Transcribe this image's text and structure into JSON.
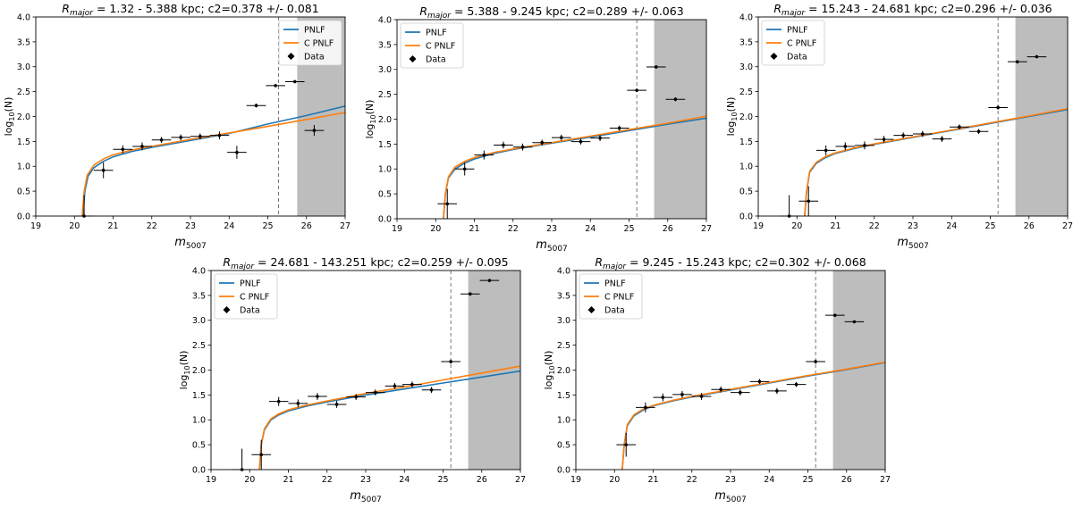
{
  "figure": {
    "legend_labels": [
      "PNLF",
      "C PNLF",
      "Data"
    ],
    "colors": {
      "pnlf": "#1f77b4",
      "cpnlf": "#ff7f0e",
      "data": "#000000",
      "shade": "#bdbdbd"
    }
  },
  "chart_data": [
    {
      "type": "line",
      "panel": "top-left",
      "title_prefix": "R",
      "title_sub": "major",
      "title_rest": " = 1.32 - 5.388 kpc; c2=0.378 +/- 0.081",
      "xlabel": "m",
      "xlabel_sub": "5007",
      "ylabel": "log",
      "ylabel_sub": "10",
      "ylabel_rest": "(N)",
      "xlim": [
        19,
        27
      ],
      "ylim": [
        0,
        4
      ],
      "xticks": [
        "19",
        "20",
        "21",
        "22",
        "23",
        "24",
        "25",
        "26",
        "27"
      ],
      "yticks": [
        "0.0",
        "0.5",
        "1.0",
        "1.5",
        "2.0",
        "2.5",
        "3.0",
        "3.5",
        "4.0"
      ],
      "legend_loc": "upper right",
      "cutoff": 25.28,
      "shade_start": 25.76,
      "pnlf": {
        "x": [
          20.22,
          20.27,
          20.35,
          20.5,
          20.75,
          21.0,
          21.5,
          22.0,
          23.0,
          24.0,
          25.0,
          26.0,
          27.0
        ],
        "y": [
          0,
          0.5,
          0.8,
          0.97,
          1.1,
          1.19,
          1.3,
          1.38,
          1.52,
          1.66,
          1.85,
          2.02,
          2.21
        ]
      },
      "cpnlf": {
        "x": [
          20.2,
          20.25,
          20.33,
          20.5,
          20.75,
          21.0,
          21.5,
          22.0,
          23.0,
          24.0,
          25.0,
          26.0,
          27.0
        ],
        "y": [
          0,
          0.5,
          0.82,
          1.02,
          1.15,
          1.23,
          1.33,
          1.4,
          1.54,
          1.67,
          1.8,
          1.94,
          2.08
        ]
      },
      "points": [
        {
          "x": 20.25,
          "y": 0.0,
          "yerr": 0.42
        },
        {
          "x": 20.75,
          "y": 0.92,
          "yerr": 0.16
        },
        {
          "x": 21.25,
          "y": 1.34,
          "yerr": 0.08
        },
        {
          "x": 21.75,
          "y": 1.4,
          "yerr": 0.08
        },
        {
          "x": 22.25,
          "y": 1.53,
          "yerr": 0.06
        },
        {
          "x": 22.75,
          "y": 1.58,
          "yerr": 0.06
        },
        {
          "x": 23.25,
          "y": 1.6,
          "yerr": 0.06
        },
        {
          "x": 23.75,
          "y": 1.62,
          "yerr": 0.08
        },
        {
          "x": 24.2,
          "y": 1.28,
          "yerr": 0.13
        },
        {
          "x": 24.7,
          "y": 2.22,
          "yerr": 0.04
        },
        {
          "x": 25.2,
          "y": 2.62,
          "yerr": 0.03
        },
        {
          "x": 25.7,
          "y": 2.7,
          "yerr": 0.03
        },
        {
          "x": 26.2,
          "y": 1.72,
          "yerr": 0.11
        }
      ]
    },
    {
      "type": "line",
      "panel": "top-middle",
      "title_prefix": "R",
      "title_sub": "major",
      "title_rest": " = 5.388 - 9.245 kpc; c2=0.289 +/- 0.063",
      "xlabel": "m",
      "xlabel_sub": "5007",
      "ylabel": "log",
      "ylabel_sub": "10",
      "ylabel_rest": "(N)",
      "xlim": [
        19,
        27
      ],
      "ylim": [
        0,
        4
      ],
      "xticks": [
        "19",
        "20",
        "21",
        "22",
        "23",
        "24",
        "25",
        "26",
        "27"
      ],
      "yticks": [
        "0.0",
        "0.5",
        "1.0",
        "1.5",
        "2.0",
        "2.5",
        "3.0",
        "3.5",
        "4.0"
      ],
      "legend_loc": "upper left",
      "cutoff": 25.2,
      "shade_start": 25.65,
      "pnlf": {
        "x": [
          20.2,
          20.25,
          20.33,
          20.5,
          20.75,
          21.0,
          21.5,
          22.0,
          23.0,
          24.0,
          25.0,
          26.0,
          27.0
        ],
        "y": [
          0,
          0.5,
          0.82,
          1.0,
          1.12,
          1.2,
          1.31,
          1.39,
          1.52,
          1.64,
          1.77,
          1.9,
          2.02
        ]
      },
      "cpnlf": {
        "x": [
          20.2,
          20.25,
          20.33,
          20.5,
          20.75,
          21.0,
          21.5,
          22.0,
          23.0,
          24.0,
          25.0,
          26.0,
          27.0
        ],
        "y": [
          0,
          0.5,
          0.84,
          1.04,
          1.15,
          1.23,
          1.33,
          1.4,
          1.53,
          1.66,
          1.79,
          1.92,
          2.06
        ]
      },
      "points": [
        {
          "x": 20.3,
          "y": 0.3,
          "yerr": 0.3
        },
        {
          "x": 20.75,
          "y": 1.0,
          "yerr": 0.13
        },
        {
          "x": 21.25,
          "y": 1.28,
          "yerr": 0.09
        },
        {
          "x": 21.75,
          "y": 1.48,
          "yerr": 0.07
        },
        {
          "x": 22.25,
          "y": 1.44,
          "yerr": 0.07
        },
        {
          "x": 22.75,
          "y": 1.53,
          "yerr": 0.06
        },
        {
          "x": 23.25,
          "y": 1.63,
          "yerr": 0.06
        },
        {
          "x": 23.75,
          "y": 1.55,
          "yerr": 0.06
        },
        {
          "x": 24.25,
          "y": 1.62,
          "yerr": 0.06
        },
        {
          "x": 24.75,
          "y": 1.82,
          "yerr": 0.05
        },
        {
          "x": 25.2,
          "y": 2.58,
          "yerr": 0.03
        },
        {
          "x": 25.7,
          "y": 3.05,
          "yerr": 0.02
        },
        {
          "x": 26.2,
          "y": 2.4,
          "yerr": 0.04
        }
      ]
    },
    {
      "type": "line",
      "panel": "top-right",
      "title_prefix": "R",
      "title_sub": "major",
      "title_rest": " = 15.243 - 24.681 kpc; c2=0.296 +/- 0.036",
      "xlabel": "m",
      "xlabel_sub": "5007",
      "ylabel": "log",
      "ylabel_sub": "10",
      "ylabel_rest": "(N)",
      "xlim": [
        19,
        27
      ],
      "ylim": [
        0,
        4
      ],
      "xticks": [
        "19",
        "20",
        "21",
        "22",
        "23",
        "24",
        "25",
        "26",
        "27"
      ],
      "yticks": [
        "0.0",
        "0.5",
        "1.0",
        "1.5",
        "2.0",
        "2.5",
        "3.0",
        "3.5",
        "4.0"
      ],
      "legend_loc": "upper left",
      "cutoff": 25.2,
      "shade_start": 25.65,
      "pnlf": {
        "x": [
          20.2,
          20.25,
          20.33,
          20.5,
          20.75,
          21.0,
          21.5,
          22.0,
          23.0,
          24.0,
          25.0,
          26.0,
          27.0
        ],
        "y": [
          0,
          0.5,
          0.88,
          1.06,
          1.18,
          1.26,
          1.36,
          1.44,
          1.58,
          1.72,
          1.86,
          2.0,
          2.14
        ]
      },
      "cpnlf": {
        "x": [
          20.2,
          20.25,
          20.33,
          20.5,
          20.75,
          21.0,
          21.5,
          22.0,
          23.0,
          24.0,
          25.0,
          26.0,
          27.0
        ],
        "y": [
          0,
          0.5,
          0.9,
          1.08,
          1.2,
          1.27,
          1.37,
          1.45,
          1.59,
          1.73,
          1.87,
          2.01,
          2.16
        ]
      },
      "points": [
        {
          "x": 19.8,
          "y": 0.0,
          "yerr": 0.42
        },
        {
          "x": 20.3,
          "y": 0.3,
          "yerr": 0.3
        },
        {
          "x": 20.75,
          "y": 1.32,
          "yerr": 0.1
        },
        {
          "x": 21.25,
          "y": 1.4,
          "yerr": 0.08
        },
        {
          "x": 21.75,
          "y": 1.42,
          "yerr": 0.08
        },
        {
          "x": 22.25,
          "y": 1.54,
          "yerr": 0.07
        },
        {
          "x": 22.75,
          "y": 1.62,
          "yerr": 0.06
        },
        {
          "x": 23.25,
          "y": 1.65,
          "yerr": 0.06
        },
        {
          "x": 23.75,
          "y": 1.55,
          "yerr": 0.06
        },
        {
          "x": 24.2,
          "y": 1.79,
          "yerr": 0.05
        },
        {
          "x": 24.7,
          "y": 1.7,
          "yerr": 0.05
        },
        {
          "x": 25.2,
          "y": 2.18,
          "yerr": 0.04
        },
        {
          "x": 25.7,
          "y": 3.1,
          "yerr": 0.02
        },
        {
          "x": 26.2,
          "y": 3.2,
          "yerr": 0.02
        }
      ]
    },
    {
      "type": "line",
      "panel": "bottom-left",
      "title_prefix": "R",
      "title_sub": "major",
      "title_rest": " = 24.681 - 143.251 kpc; c2=0.259 +/- 0.095",
      "xlabel": "m",
      "xlabel_sub": "5007",
      "ylabel": "log",
      "ylabel_sub": "10",
      "ylabel_rest": "(N)",
      "xlim": [
        19,
        27
      ],
      "ylim": [
        0,
        4
      ],
      "xticks": [
        "19",
        "20",
        "21",
        "22",
        "23",
        "24",
        "25",
        "26",
        "27"
      ],
      "yticks": [
        "0.0",
        "0.5",
        "1.0",
        "1.5",
        "2.0",
        "2.5",
        "3.0",
        "3.5",
        "4.0"
      ],
      "legend_loc": "upper left",
      "cutoff": 25.2,
      "shade_start": 25.65,
      "pnlf": {
        "x": [
          20.25,
          20.3,
          20.38,
          20.55,
          20.75,
          21.0,
          21.5,
          22.0,
          23.0,
          24.0,
          25.0,
          26.0,
          27.0
        ],
        "y": [
          0,
          0.5,
          0.8,
          1.0,
          1.1,
          1.18,
          1.28,
          1.36,
          1.5,
          1.62,
          1.74,
          1.86,
          1.98
        ]
      },
      "cpnlf": {
        "x": [
          20.25,
          20.3,
          20.38,
          20.55,
          20.75,
          21.0,
          21.5,
          22.0,
          23.0,
          24.0,
          25.0,
          26.0,
          27.0
        ],
        "y": [
          0,
          0.5,
          0.82,
          1.02,
          1.12,
          1.2,
          1.3,
          1.38,
          1.53,
          1.66,
          1.8,
          1.94,
          2.08
        ]
      },
      "points": [
        {
          "x": 19.8,
          "y": 0.0,
          "yerr": 0.42
        },
        {
          "x": 20.3,
          "y": 0.3,
          "yerr": 0.3
        },
        {
          "x": 20.75,
          "y": 1.37,
          "yerr": 0.09
        },
        {
          "x": 21.25,
          "y": 1.33,
          "yerr": 0.08
        },
        {
          "x": 21.75,
          "y": 1.47,
          "yerr": 0.07
        },
        {
          "x": 22.25,
          "y": 1.31,
          "yerr": 0.07
        },
        {
          "x": 22.75,
          "y": 1.46,
          "yerr": 0.06
        },
        {
          "x": 23.25,
          "y": 1.55,
          "yerr": 0.06
        },
        {
          "x": 23.75,
          "y": 1.68,
          "yerr": 0.06
        },
        {
          "x": 24.2,
          "y": 1.71,
          "yerr": 0.06
        },
        {
          "x": 24.7,
          "y": 1.6,
          "yerr": 0.06
        },
        {
          "x": 25.2,
          "y": 2.17,
          "yerr": 0.04
        },
        {
          "x": 25.7,
          "y": 3.53,
          "yerr": 0.02
        },
        {
          "x": 26.2,
          "y": 3.8,
          "yerr": 0.02
        }
      ]
    },
    {
      "type": "line",
      "panel": "bottom-right",
      "title_prefix": "R",
      "title_sub": "major",
      "title_rest": " = 9.245 - 15.243 kpc; c2=0.302 +/- 0.068",
      "xlabel": "m",
      "xlabel_sub": "5007",
      "ylabel": "log",
      "ylabel_sub": "10",
      "ylabel_rest": "(N)",
      "xlim": [
        19,
        27
      ],
      "ylim": [
        0,
        4
      ],
      "xticks": [
        "19",
        "20",
        "21",
        "22",
        "23",
        "24",
        "25",
        "26",
        "27"
      ],
      "yticks": [
        "0.0",
        "0.5",
        "1.0",
        "1.5",
        "2.0",
        "2.5",
        "3.0",
        "3.5",
        "4.0"
      ],
      "legend_loc": "upper left",
      "cutoff": 25.2,
      "shade_start": 25.65,
      "pnlf": {
        "x": [
          20.2,
          20.25,
          20.33,
          20.5,
          20.75,
          21.0,
          21.5,
          22.0,
          23.0,
          24.0,
          25.0,
          26.0,
          27.0
        ],
        "y": [
          0,
          0.5,
          0.88,
          1.08,
          1.2,
          1.28,
          1.38,
          1.46,
          1.6,
          1.74,
          1.88,
          2.01,
          2.15
        ]
      },
      "cpnlf": {
        "x": [
          20.2,
          20.25,
          20.33,
          20.5,
          20.75,
          21.0,
          21.5,
          22.0,
          23.0,
          24.0,
          25.0,
          26.0,
          27.0
        ],
        "y": [
          0,
          0.5,
          0.9,
          1.1,
          1.22,
          1.29,
          1.39,
          1.47,
          1.61,
          1.75,
          1.89,
          2.02,
          2.16
        ]
      },
      "points": [
        {
          "x": 20.3,
          "y": 0.5,
          "yerr": 0.24
        },
        {
          "x": 20.8,
          "y": 1.25,
          "yerr": 0.1
        },
        {
          "x": 21.25,
          "y": 1.45,
          "yerr": 0.08
        },
        {
          "x": 21.75,
          "y": 1.51,
          "yerr": 0.07
        },
        {
          "x": 22.25,
          "y": 1.47,
          "yerr": 0.07
        },
        {
          "x": 22.75,
          "y": 1.61,
          "yerr": 0.06
        },
        {
          "x": 23.25,
          "y": 1.55,
          "yerr": 0.06
        },
        {
          "x": 23.75,
          "y": 1.77,
          "yerr": 0.05
        },
        {
          "x": 24.2,
          "y": 1.58,
          "yerr": 0.06
        },
        {
          "x": 24.7,
          "y": 1.71,
          "yerr": 0.05
        },
        {
          "x": 25.2,
          "y": 2.17,
          "yerr": 0.04
        },
        {
          "x": 25.7,
          "y": 3.1,
          "yerr": 0.02
        },
        {
          "x": 26.2,
          "y": 2.97,
          "yerr": 0.02
        }
      ]
    }
  ]
}
